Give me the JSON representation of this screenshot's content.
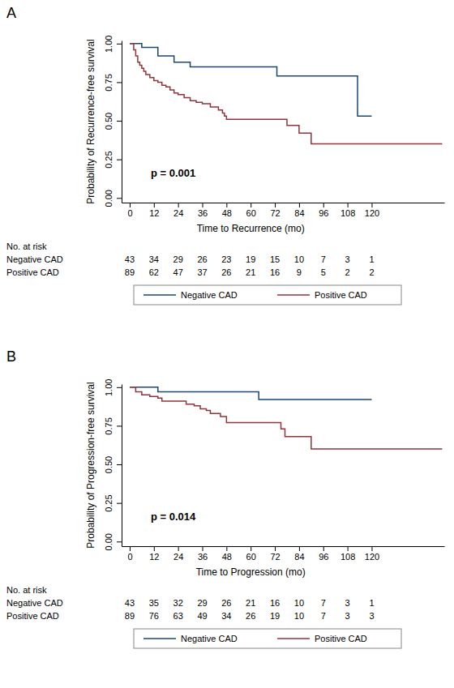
{
  "chart_data": [
    {
      "type": "line",
      "line_style": "step",
      "title": "A",
      "x_label": "Time to Recurrence (mo)",
      "y_label": "Probability of Recurrence-free survival",
      "annotation": "p = 0.001",
      "xlim": [
        -4,
        156
      ],
      "ylim": [
        -0.03,
        1.02
      ],
      "xticks": [
        0,
        12,
        24,
        36,
        48,
        60,
        72,
        84,
        96,
        108,
        120
      ],
      "yticks": [
        {
          "value": 0,
          "label": "0.00"
        },
        {
          "value": 0.25,
          "label": "0.25"
        },
        {
          "value": 0.5,
          "label": "0.50"
        },
        {
          "value": 0.75,
          "label": "0.75"
        },
        {
          "value": 1,
          "label": "1.00"
        }
      ],
      "grid": false,
      "legend": "bottom",
      "series": [
        {
          "name": "Negative CAD",
          "color": "#1a476f",
          "x": [
            0,
            6,
            14,
            22,
            30,
            73,
            113,
            120
          ],
          "values": [
            1,
            0.975,
            0.92,
            0.88,
            0.85,
            0.79,
            0.53,
            0.53
          ]
        },
        {
          "name": "Positive CAD",
          "color": "#90353b",
          "x": [
            0,
            2,
            3,
            4,
            5,
            6,
            7,
            8,
            10,
            12,
            14,
            16,
            18,
            20,
            22,
            24,
            27,
            30,
            33,
            36,
            40,
            44,
            46,
            47,
            48,
            78,
            84,
            90,
            155
          ],
          "values": [
            1,
            0.96,
            0.92,
            0.88,
            0.86,
            0.84,
            0.82,
            0.8,
            0.78,
            0.76,
            0.75,
            0.73,
            0.72,
            0.7,
            0.68,
            0.67,
            0.65,
            0.63,
            0.62,
            0.61,
            0.59,
            0.57,
            0.55,
            0.53,
            0.51,
            0.47,
            0.42,
            0.35,
            0.35
          ]
        }
      ],
      "risk_table": {
        "title": "No. at risk",
        "rows": [
          {
            "name": "Negative CAD",
            "values": [
              43,
              34,
              29,
              26,
              23,
              19,
              15,
              10,
              7,
              3,
              1
            ]
          },
          {
            "name": "Positive CAD",
            "values": [
              89,
              62,
              47,
              37,
              26,
              21,
              16,
              9,
              5,
              2,
              2
            ]
          }
        ]
      }
    },
    {
      "type": "line",
      "line_style": "step",
      "title": "B",
      "x_label": "Time to Progression (mo)",
      "y_label": "Probability of Progression-free survival",
      "annotation": "p = 0.014",
      "xlim": [
        -4,
        156
      ],
      "ylim": [
        -0.03,
        1.02
      ],
      "xticks": [
        0,
        12,
        24,
        36,
        48,
        60,
        72,
        84,
        96,
        108,
        120
      ],
      "yticks": [
        {
          "value": 0,
          "label": "0.00"
        },
        {
          "value": 0.25,
          "label": "0.25"
        },
        {
          "value": 0.5,
          "label": "0.50"
        },
        {
          "value": 0.75,
          "label": "0.75"
        },
        {
          "value": 1,
          "label": "1.00"
        }
      ],
      "grid": false,
      "legend": "bottom",
      "series": [
        {
          "name": "Negative CAD",
          "color": "#1a476f",
          "x": [
            0,
            14,
            64,
            120
          ],
          "values": [
            1,
            0.97,
            0.92,
            0.92
          ]
        },
        {
          "name": "Positive CAD",
          "color": "#90353b",
          "x": [
            0,
            3,
            6,
            10,
            14,
            16,
            28,
            32,
            35,
            38,
            40,
            45,
            48,
            75,
            77,
            90,
            155
          ],
          "values": [
            1,
            0.97,
            0.95,
            0.94,
            0.93,
            0.91,
            0.89,
            0.88,
            0.86,
            0.85,
            0.83,
            0.81,
            0.77,
            0.73,
            0.68,
            0.6,
            0.6
          ]
        }
      ],
      "risk_table": {
        "title": "No. at risk",
        "rows": [
          {
            "name": "Negative CAD",
            "values": [
              43,
              35,
              32,
              29,
              26,
              21,
              16,
              10,
              7,
              3,
              1
            ]
          },
          {
            "name": "Positive CAD",
            "values": [
              89,
              76,
              63,
              49,
              34,
              26,
              19,
              10,
              7,
              3,
              3
            ]
          }
        ]
      }
    }
  ]
}
